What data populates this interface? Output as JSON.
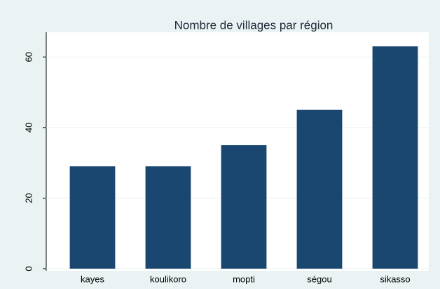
{
  "chart_data": {
    "type": "bar",
    "title": "Nombre de villages par région",
    "categories": [
      "kayes",
      "koulikoro",
      "mopti",
      "ségou",
      "sikasso"
    ],
    "values": [
      29,
      29,
      35,
      45,
      63
    ],
    "color": "#1a476f",
    "ylim": [
      0,
      67
    ],
    "yticks": [
      0,
      20,
      40,
      60
    ],
    "grid": true
  }
}
